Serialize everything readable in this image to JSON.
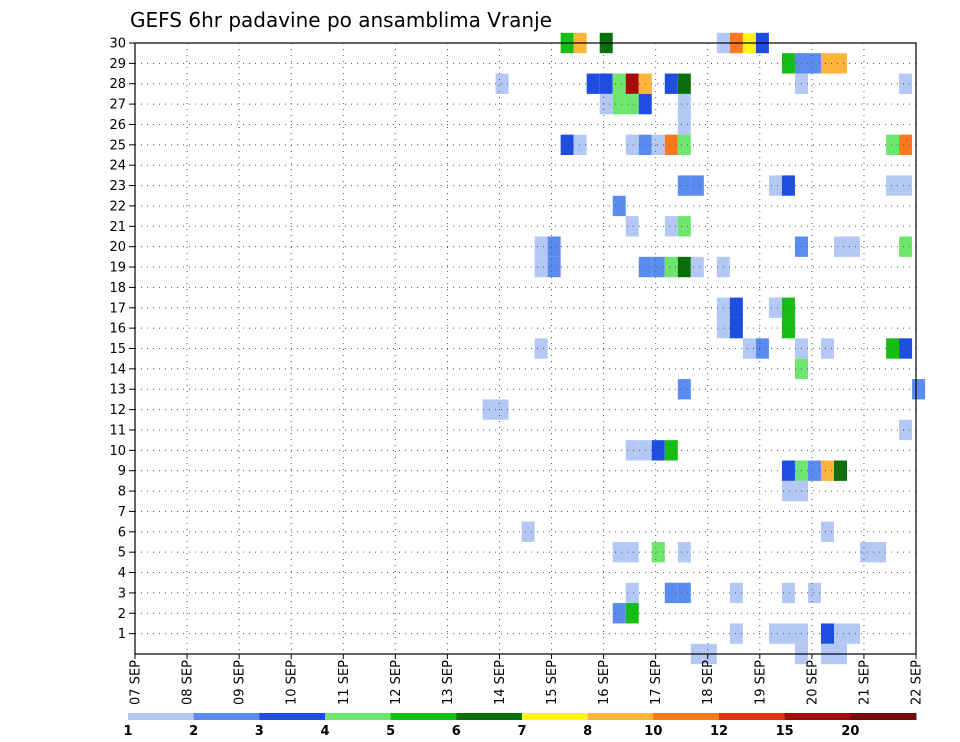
{
  "chart_data": {
    "type": "heatmap",
    "title": "GEFS 6hr padavine po ansamblima Vranje",
    "x_tick_labels": [
      "07 SEP",
      "08 SEP",
      "09 SEP",
      "10 SEP",
      "11 SEP",
      "12 SEP",
      "13 SEP",
      "14 SEP",
      "15 SEP",
      "16 SEP",
      "17 SEP",
      "18 SEP",
      "19 SEP",
      "20 SEP",
      "21 SEP",
      "22 SEP"
    ],
    "y_tick_labels": [
      "1",
      "2",
      "3",
      "4",
      "5",
      "6",
      "7",
      "8",
      "9",
      "10",
      "11",
      "12",
      "13",
      "14",
      "15",
      "16",
      "17",
      "18",
      "19",
      "20",
      "21",
      "22",
      "23",
      "24",
      "25",
      "26",
      "27",
      "28",
      "29",
      "30"
    ],
    "x_range": [
      "07 SEP",
      "22 SEP"
    ],
    "y_range": [
      0,
      30
    ],
    "grid": true,
    "legend_placement": "bottom",
    "legend": {
      "labels": [
        "1",
        "2",
        "3",
        "4",
        "5",
        "6",
        "7",
        "8",
        "10",
        "12",
        "15",
        "20"
      ],
      "colors": [
        "#b4c8f5",
        "#5a8cf0",
        "#1e4ee1",
        "#6ee66e",
        "#14be14",
        "#0a6e0a",
        "#fff514",
        "#ffb43c",
        "#ff781e",
        "#e13214",
        "#a50a0a",
        "#780a0a"
      ]
    },
    "cells_note_fields": [
      "day",
      "member",
      "class"
    ],
    "cells": [
      [
        15.3,
        30,
        5
      ],
      [
        15.55,
        30,
        8
      ],
      [
        16.05,
        30,
        6
      ],
      [
        18.3,
        30,
        1
      ],
      [
        18.55,
        30,
        9
      ],
      [
        18.8,
        30,
        7
      ],
      [
        19.05,
        30,
        3
      ],
      [
        19.55,
        29,
        5
      ],
      [
        19.8,
        29,
        2
      ],
      [
        20.05,
        29,
        2
      ],
      [
        20.3,
        29,
        8
      ],
      [
        20.55,
        29,
        8
      ],
      [
        14.05,
        28,
        1
      ],
      [
        15.8,
        28,
        3
      ],
      [
        16.05,
        28,
        3
      ],
      [
        16.3,
        28,
        4
      ],
      [
        16.55,
        28,
        11
      ],
      [
        16.8,
        28,
        8
      ],
      [
        17.3,
        28,
        3
      ],
      [
        17.55,
        28,
        6
      ],
      [
        19.8,
        28,
        1
      ],
      [
        21.8,
        28,
        1
      ],
      [
        16.05,
        27,
        1
      ],
      [
        16.3,
        27,
        4
      ],
      [
        16.55,
        27,
        4
      ],
      [
        16.8,
        27,
        3
      ],
      [
        17.55,
        27,
        1
      ],
      [
        17.55,
        26,
        1
      ],
      [
        15.3,
        25,
        3
      ],
      [
        15.55,
        25,
        1
      ],
      [
        16.55,
        25,
        1
      ],
      [
        16.8,
        25,
        2
      ],
      [
        17.05,
        25,
        1
      ],
      [
        17.3,
        25,
        9
      ],
      [
        17.55,
        25,
        4
      ],
      [
        21.55,
        25,
        4
      ],
      [
        21.8,
        25,
        9
      ],
      [
        17.55,
        23,
        2
      ],
      [
        17.8,
        23,
        2
      ],
      [
        19.3,
        23,
        1
      ],
      [
        19.55,
        23,
        3
      ],
      [
        21.55,
        23,
        1
      ],
      [
        21.8,
        23,
        1
      ],
      [
        16.3,
        22,
        2
      ],
      [
        16.55,
        21,
        1
      ],
      [
        17.3,
        21,
        1
      ],
      [
        17.55,
        21,
        4
      ],
      [
        14.8,
        20,
        1
      ],
      [
        15.05,
        20,
        2
      ],
      [
        19.8,
        20,
        2
      ],
      [
        20.55,
        20,
        1
      ],
      [
        20.8,
        20,
        1
      ],
      [
        21.8,
        20,
        4
      ],
      [
        14.8,
        19,
        1
      ],
      [
        15.05,
        19,
        2
      ],
      [
        16.8,
        19,
        2
      ],
      [
        17.05,
        19,
        2
      ],
      [
        17.3,
        19,
        4
      ],
      [
        17.55,
        19,
        6
      ],
      [
        17.8,
        19,
        1
      ],
      [
        18.3,
        19,
        1
      ],
      [
        18.3,
        17,
        1
      ],
      [
        18.55,
        17,
        3
      ],
      [
        19.3,
        17,
        1
      ],
      [
        19.55,
        17,
        5
      ],
      [
        18.3,
        16,
        1
      ],
      [
        18.55,
        16,
        3
      ],
      [
        19.55,
        16,
        5
      ],
      [
        14.8,
        15,
        1
      ],
      [
        18.8,
        15,
        1
      ],
      [
        19.05,
        15,
        2
      ],
      [
        19.8,
        15,
        1
      ],
      [
        20.3,
        15,
        1
      ],
      [
        21.55,
        15,
        5
      ],
      [
        21.8,
        15,
        3
      ],
      [
        19.8,
        14,
        4
      ],
      [
        17.55,
        13,
        2
      ],
      [
        22.05,
        13,
        2
      ],
      [
        13.8,
        12,
        1
      ],
      [
        14.05,
        12,
        1
      ],
      [
        21.8,
        11,
        1
      ],
      [
        16.55,
        10,
        1
      ],
      [
        16.8,
        10,
        1
      ],
      [
        17.05,
        10,
        3
      ],
      [
        17.3,
        10,
        5
      ],
      [
        19.55,
        9,
        3
      ],
      [
        19.8,
        9,
        4
      ],
      [
        20.05,
        9,
        2
      ],
      [
        20.3,
        9,
        8
      ],
      [
        20.55,
        9,
        6
      ],
      [
        19.55,
        8,
        1
      ],
      [
        19.8,
        8,
        1
      ],
      [
        14.55,
        6,
        1
      ],
      [
        20.3,
        6,
        1
      ],
      [
        16.3,
        5,
        1
      ],
      [
        16.55,
        5,
        1
      ],
      [
        17.05,
        5,
        4
      ],
      [
        17.55,
        5,
        1
      ],
      [
        21.05,
        5,
        1
      ],
      [
        21.3,
        5,
        1
      ],
      [
        16.55,
        3,
        1
      ],
      [
        17.3,
        3,
        2
      ],
      [
        17.55,
        3,
        2
      ],
      [
        18.55,
        3,
        1
      ],
      [
        19.55,
        3,
        1
      ],
      [
        20.05,
        3,
        1
      ],
      [
        16.3,
        2,
        2
      ],
      [
        16.55,
        2,
        5
      ],
      [
        18.55,
        1,
        1
      ],
      [
        19.3,
        1,
        1
      ],
      [
        19.55,
        1,
        1
      ],
      [
        19.8,
        1,
        1
      ],
      [
        20.3,
        1,
        3
      ],
      [
        20.55,
        1,
        1
      ],
      [
        20.8,
        1,
        1
      ],
      [
        17.8,
        0,
        1
      ],
      [
        18.05,
        0,
        1
      ],
      [
        19.8,
        0,
        1
      ],
      [
        20.3,
        0,
        1
      ],
      [
        20.55,
        0,
        1
      ]
    ]
  }
}
